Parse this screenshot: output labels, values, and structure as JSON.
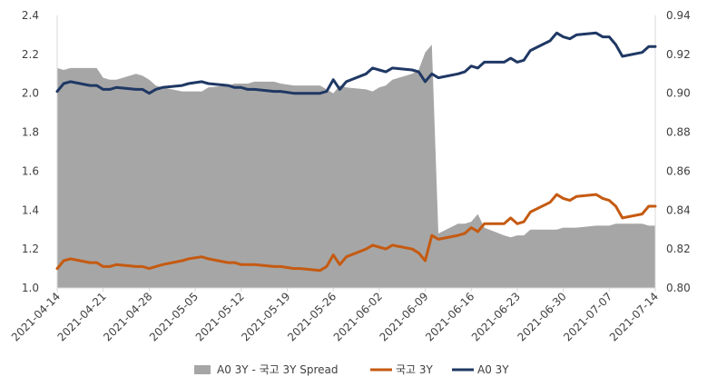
{
  "chart_data": {
    "type": "line",
    "title": "",
    "xlabel": "",
    "ylabel": "",
    "x_tick_labels": [
      "2021-04-14",
      "2021-04-21",
      "2021-04-28",
      "2021-05-05",
      "2021-05-12",
      "2021-05-19",
      "2021-05-26",
      "2021-06-02",
      "2021-06-09",
      "2021-06-16",
      "2021-06-23",
      "2021-06-30",
      "2021-07-07",
      "2021-07-14"
    ],
    "y_left": {
      "lim": [
        1.0,
        2.4
      ],
      "ticks": [
        "1.0",
        "1.2",
        "1.4",
        "1.6",
        "1.8",
        "2.0",
        "2.2",
        "2.4"
      ]
    },
    "y_right": {
      "lim": [
        0.8,
        0.94
      ],
      "ticks": [
        "0.80",
        "0.82",
        "0.84",
        "0.86",
        "0.88",
        "0.90",
        "0.92",
        "0.94"
      ]
    },
    "grid": false,
    "legend_position": "bottom",
    "series": [
      {
        "name": "A0 3Y - 국고 3Y Spread",
        "chart_kind": "area",
        "axis": "right",
        "color": "#a6a6a6",
        "points": [
          [
            "2021-04-14",
            0.913
          ],
          [
            "2021-04-15",
            0.912
          ],
          [
            "2021-04-16",
            0.913
          ],
          [
            "2021-04-19",
            0.913
          ],
          [
            "2021-04-20",
            0.913
          ],
          [
            "2021-04-21",
            0.908
          ],
          [
            "2021-04-22",
            0.907
          ],
          [
            "2021-04-23",
            0.907
          ],
          [
            "2021-04-26",
            0.91
          ],
          [
            "2021-04-27",
            0.909
          ],
          [
            "2021-04-28",
            0.907
          ],
          [
            "2021-04-29",
            0.904
          ],
          [
            "2021-04-30",
            0.903
          ],
          [
            "2021-05-03",
            0.901
          ],
          [
            "2021-05-04",
            0.901
          ],
          [
            "2021-05-06",
            0.901
          ],
          [
            "2021-05-07",
            0.903
          ],
          [
            "2021-05-10",
            0.904
          ],
          [
            "2021-05-11",
            0.905
          ],
          [
            "2021-05-12",
            0.905
          ],
          [
            "2021-05-13",
            0.905
          ],
          [
            "2021-05-14",
            0.906
          ],
          [
            "2021-05-17",
            0.906
          ],
          [
            "2021-05-18",
            0.905
          ],
          [
            "2021-05-20",
            0.904
          ],
          [
            "2021-05-21",
            0.904
          ],
          [
            "2021-05-24",
            0.904
          ],
          [
            "2021-05-25",
            0.902
          ],
          [
            "2021-05-26",
            0.9
          ],
          [
            "2021-05-27",
            0.904
          ],
          [
            "2021-05-28",
            0.903
          ],
          [
            "2021-05-31",
            0.902
          ],
          [
            "2021-06-01",
            0.901
          ],
          [
            "2021-06-02",
            0.903
          ],
          [
            "2021-06-03",
            0.904
          ],
          [
            "2021-06-04",
            0.907
          ],
          [
            "2021-06-07",
            0.91
          ],
          [
            "2021-06-08",
            0.912
          ],
          [
            "2021-06-09",
            0.921
          ],
          [
            "2021-06-10",
            0.925
          ],
          [
            "2021-06-11",
            0.828
          ],
          [
            "2021-06-14",
            0.833
          ],
          [
            "2021-06-15",
            0.833
          ],
          [
            "2021-06-16",
            0.834
          ],
          [
            "2021-06-17",
            0.838
          ],
          [
            "2021-06-18",
            0.831
          ],
          [
            "2021-06-21",
            0.827
          ],
          [
            "2021-06-22",
            0.826
          ],
          [
            "2021-06-23",
            0.827
          ],
          [
            "2021-06-24",
            0.827
          ],
          [
            "2021-06-25",
            0.83
          ],
          [
            "2021-06-28",
            0.83
          ],
          [
            "2021-06-29",
            0.83
          ],
          [
            "2021-06-30",
            0.831
          ],
          [
            "2021-07-01",
            0.831
          ],
          [
            "2021-07-02",
            0.831
          ],
          [
            "2021-07-05",
            0.832
          ],
          [
            "2021-07-06",
            0.832
          ],
          [
            "2021-07-07",
            0.832
          ],
          [
            "2021-07-08",
            0.833
          ],
          [
            "2021-07-09",
            0.833
          ],
          [
            "2021-07-12",
            0.833
          ],
          [
            "2021-07-13",
            0.832
          ],
          [
            "2021-07-14",
            0.832
          ]
        ]
      },
      {
        "name": "국고 3Y",
        "chart_kind": "line",
        "axis": "left",
        "color": "#c55a11",
        "points": [
          [
            "2021-04-14",
            1.1
          ],
          [
            "2021-04-15",
            1.14
          ],
          [
            "2021-04-16",
            1.15
          ],
          [
            "2021-04-19",
            1.13
          ],
          [
            "2021-04-20",
            1.13
          ],
          [
            "2021-04-21",
            1.11
          ],
          [
            "2021-04-22",
            1.11
          ],
          [
            "2021-04-23",
            1.12
          ],
          [
            "2021-04-26",
            1.11
          ],
          [
            "2021-04-27",
            1.11
          ],
          [
            "2021-04-28",
            1.1
          ],
          [
            "2021-04-29",
            1.11
          ],
          [
            "2021-04-30",
            1.12
          ],
          [
            "2021-05-03",
            1.14
          ],
          [
            "2021-05-04",
            1.15
          ],
          [
            "2021-05-06",
            1.16
          ],
          [
            "2021-05-07",
            1.15
          ],
          [
            "2021-05-10",
            1.13
          ],
          [
            "2021-05-11",
            1.13
          ],
          [
            "2021-05-12",
            1.12
          ],
          [
            "2021-05-13",
            1.12
          ],
          [
            "2021-05-14",
            1.12
          ],
          [
            "2021-05-17",
            1.11
          ],
          [
            "2021-05-18",
            1.11
          ],
          [
            "2021-05-20",
            1.1
          ],
          [
            "2021-05-21",
            1.1
          ],
          [
            "2021-05-24",
            1.09
          ],
          [
            "2021-05-25",
            1.11
          ],
          [
            "2021-05-26",
            1.17
          ],
          [
            "2021-05-27",
            1.12
          ],
          [
            "2021-05-28",
            1.16
          ],
          [
            "2021-05-31",
            1.2
          ],
          [
            "2021-06-01",
            1.22
          ],
          [
            "2021-06-02",
            1.21
          ],
          [
            "2021-06-03",
            1.2
          ],
          [
            "2021-06-04",
            1.22
          ],
          [
            "2021-06-07",
            1.2
          ],
          [
            "2021-06-08",
            1.18
          ],
          [
            "2021-06-09",
            1.14
          ],
          [
            "2021-06-10",
            1.27
          ],
          [
            "2021-06-11",
            1.25
          ],
          [
            "2021-06-14",
            1.27
          ],
          [
            "2021-06-15",
            1.28
          ],
          [
            "2021-06-16",
            1.31
          ],
          [
            "2021-06-17",
            1.29
          ],
          [
            "2021-06-18",
            1.33
          ],
          [
            "2021-06-21",
            1.33
          ],
          [
            "2021-06-22",
            1.36
          ],
          [
            "2021-06-23",
            1.33
          ],
          [
            "2021-06-24",
            1.34
          ],
          [
            "2021-06-25",
            1.39
          ],
          [
            "2021-06-28",
            1.44
          ],
          [
            "2021-06-29",
            1.48
          ],
          [
            "2021-06-30",
            1.46
          ],
          [
            "2021-07-01",
            1.45
          ],
          [
            "2021-07-02",
            1.47
          ],
          [
            "2021-07-05",
            1.48
          ],
          [
            "2021-07-06",
            1.46
          ],
          [
            "2021-07-07",
            1.45
          ],
          [
            "2021-07-08",
            1.42
          ],
          [
            "2021-07-09",
            1.36
          ],
          [
            "2021-07-12",
            1.38
          ],
          [
            "2021-07-13",
            1.42
          ],
          [
            "2021-07-14",
            1.42
          ]
        ]
      },
      {
        "name": "A0 3Y",
        "chart_kind": "line",
        "axis": "left",
        "color": "#1f3864",
        "points": [
          [
            "2021-04-14",
            2.01
          ],
          [
            "2021-04-15",
            2.05
          ],
          [
            "2021-04-16",
            2.06
          ],
          [
            "2021-04-19",
            2.04
          ],
          [
            "2021-04-20",
            2.04
          ],
          [
            "2021-04-21",
            2.02
          ],
          [
            "2021-04-22",
            2.02
          ],
          [
            "2021-04-23",
            2.03
          ],
          [
            "2021-04-26",
            2.02
          ],
          [
            "2021-04-27",
            2.02
          ],
          [
            "2021-04-28",
            2.0
          ],
          [
            "2021-04-29",
            2.02
          ],
          [
            "2021-04-30",
            2.03
          ],
          [
            "2021-05-03",
            2.04
          ],
          [
            "2021-05-04",
            2.05
          ],
          [
            "2021-05-06",
            2.06
          ],
          [
            "2021-05-07",
            2.05
          ],
          [
            "2021-05-10",
            2.04
          ],
          [
            "2021-05-11",
            2.03
          ],
          [
            "2021-05-12",
            2.03
          ],
          [
            "2021-05-13",
            2.02
          ],
          [
            "2021-05-14",
            2.02
          ],
          [
            "2021-05-17",
            2.01
          ],
          [
            "2021-05-18",
            2.01
          ],
          [
            "2021-05-20",
            2.0
          ],
          [
            "2021-05-21",
            2.0
          ],
          [
            "2021-05-24",
            2.0
          ],
          [
            "2021-05-25",
            2.01
          ],
          [
            "2021-05-26",
            2.07
          ],
          [
            "2021-05-27",
            2.02
          ],
          [
            "2021-05-28",
            2.06
          ],
          [
            "2021-05-31",
            2.1
          ],
          [
            "2021-06-01",
            2.13
          ],
          [
            "2021-06-02",
            2.12
          ],
          [
            "2021-06-03",
            2.11
          ],
          [
            "2021-06-04",
            2.13
          ],
          [
            "2021-06-07",
            2.12
          ],
          [
            "2021-06-08",
            2.11
          ],
          [
            "2021-06-09",
            2.06
          ],
          [
            "2021-06-10",
            2.1
          ],
          [
            "2021-06-11",
            2.08
          ],
          [
            "2021-06-14",
            2.1
          ],
          [
            "2021-06-15",
            2.11
          ],
          [
            "2021-06-16",
            2.14
          ],
          [
            "2021-06-17",
            2.13
          ],
          [
            "2021-06-18",
            2.16
          ],
          [
            "2021-06-21",
            2.16
          ],
          [
            "2021-06-22",
            2.18
          ],
          [
            "2021-06-23",
            2.16
          ],
          [
            "2021-06-24",
            2.17
          ],
          [
            "2021-06-25",
            2.22
          ],
          [
            "2021-06-28",
            2.27
          ],
          [
            "2021-06-29",
            2.31
          ],
          [
            "2021-06-30",
            2.29
          ],
          [
            "2021-07-01",
            2.28
          ],
          [
            "2021-07-02",
            2.3
          ],
          [
            "2021-07-05",
            2.31
          ],
          [
            "2021-07-06",
            2.29
          ],
          [
            "2021-07-07",
            2.29
          ],
          [
            "2021-07-08",
            2.25
          ],
          [
            "2021-07-09",
            2.19
          ],
          [
            "2021-07-12",
            2.21
          ],
          [
            "2021-07-13",
            2.24
          ],
          [
            "2021-07-14",
            2.24
          ]
        ]
      }
    ]
  }
}
